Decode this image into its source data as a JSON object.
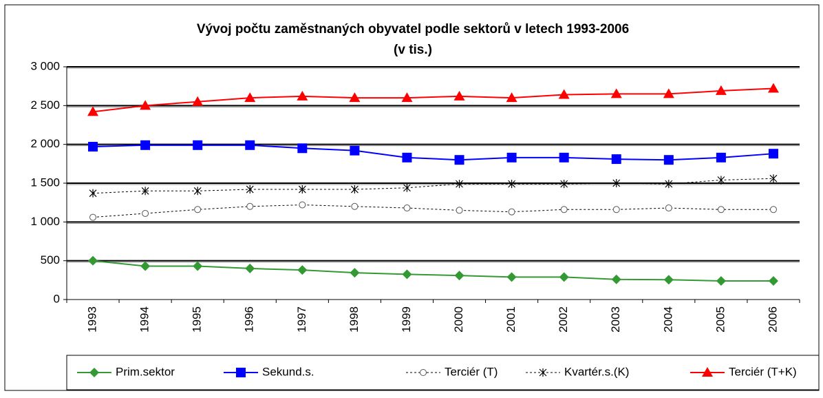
{
  "chart_data": {
    "type": "line",
    "title": "Vývoj počtu zaměstnaných obyvatel podle sektorů v letech 1993-2006",
    "subtitle": "(v tis.)",
    "categories": [
      "1993",
      "1994",
      "1995",
      "1996",
      "1997",
      "1998",
      "1999",
      "2000",
      "2001",
      "2002",
      "2003",
      "2004",
      "2005",
      "2006"
    ],
    "ylim": [
      0,
      3000
    ],
    "yticks": [
      0,
      500,
      {
        "value": 1000,
        "label": "1 000"
      },
      {
        "value": 1500,
        "label": "1 500"
      },
      {
        "value": 2000,
        "label": "2 000"
      },
      {
        "value": 2500,
        "label": "2 500"
      },
      {
        "value": 3000,
        "label": "3 000"
      }
    ],
    "grid": true,
    "legend": "bottom",
    "series": [
      {
        "name": "Prim.sektor",
        "color": "#339933",
        "marker": "diamond",
        "dashed": false,
        "values": [
          500,
          430,
          430,
          400,
          380,
          345,
          325,
          310,
          290,
          290,
          260,
          255,
          240,
          240
        ]
      },
      {
        "name": "Sekund.s.",
        "color": "#0000ff",
        "marker": "square",
        "dashed": false,
        "values": [
          1970,
          1990,
          1990,
          1990,
          1950,
          1920,
          1830,
          1800,
          1830,
          1830,
          1810,
          1800,
          1830,
          1880
        ]
      },
      {
        "name": "Terciér (T)",
        "color": "#000000",
        "marker": "circle",
        "dashed": true,
        "values": [
          1060,
          1110,
          1160,
          1200,
          1220,
          1200,
          1180,
          1150,
          1130,
          1160,
          1160,
          1180,
          1160,
          1160
        ]
      },
      {
        "name": "Kvartér.s.(K)",
        "color": "#000000",
        "marker": "star",
        "dashed": true,
        "values": [
          1370,
          1400,
          1400,
          1420,
          1420,
          1420,
          1440,
          1490,
          1490,
          1490,
          1500,
          1490,
          1540,
          1560
        ]
      },
      {
        "name": "Terciér (T+K)",
        "color": "#ff0000",
        "marker": "triangle",
        "dashed": false,
        "values": [
          2420,
          2500,
          2550,
          2600,
          2620,
          2600,
          2600,
          2620,
          2600,
          2640,
          2650,
          2650,
          2690,
          2720
        ]
      }
    ]
  }
}
